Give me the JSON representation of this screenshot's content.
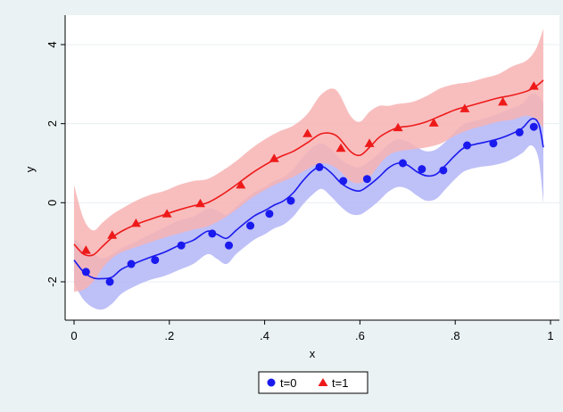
{
  "chart_data": {
    "type": "line",
    "title": "",
    "xlabel": "x",
    "ylabel": "y",
    "xlim": [
      -0.02,
      1.02
    ],
    "ylim": [
      -3.0,
      4.4
    ],
    "xticks": [
      0,
      0.2,
      0.4,
      0.6,
      0.8,
      1
    ],
    "xtick_labels": [
      "0",
      ".2",
      ".4",
      ".6",
      ".8",
      "1"
    ],
    "yticks": [
      -2,
      0,
      2,
      4
    ],
    "ytick_labels": [
      "-2",
      "0",
      "2",
      "4"
    ],
    "grid": "horizontal",
    "legend_position": "bottom",
    "series": [
      {
        "name": "t=0",
        "color": "#1a1aee",
        "band_color": "#b3b5f7",
        "marker": "circle",
        "points": {
          "x": [
            0.025,
            0.075,
            0.12,
            0.17,
            0.225,
            0.29,
            0.325,
            0.37,
            0.41,
            0.455,
            0.515,
            0.565,
            0.615,
            0.69,
            0.73,
            0.775,
            0.825,
            0.88,
            0.935,
            0.965
          ],
          "y": [
            -1.75,
            -2.0,
            -1.55,
            -1.45,
            -1.08,
            -0.78,
            -1.08,
            -0.58,
            -0.28,
            0.05,
            0.9,
            0.55,
            0.6,
            1.0,
            0.85,
            0.82,
            1.45,
            1.5,
            1.78,
            1.92
          ]
        },
        "fit": {
          "x": [
            0.0,
            0.02,
            0.04,
            0.06,
            0.08,
            0.1,
            0.13,
            0.16,
            0.19,
            0.22,
            0.25,
            0.28,
            0.3,
            0.32,
            0.34,
            0.36,
            0.38,
            0.4,
            0.42,
            0.44,
            0.46,
            0.48,
            0.5,
            0.52,
            0.54,
            0.56,
            0.58,
            0.6,
            0.62,
            0.64,
            0.66,
            0.68,
            0.7,
            0.72,
            0.74,
            0.76,
            0.78,
            0.8,
            0.82,
            0.85,
            0.88,
            0.91,
            0.94,
            0.96,
            0.975,
            0.985
          ],
          "y": [
            -1.45,
            -1.75,
            -1.9,
            -1.92,
            -1.88,
            -1.68,
            -1.52,
            -1.38,
            -1.25,
            -1.08,
            -0.95,
            -0.72,
            -0.8,
            -0.9,
            -0.7,
            -0.5,
            -0.32,
            -0.2,
            -0.06,
            0.05,
            0.25,
            0.55,
            0.8,
            0.92,
            0.75,
            0.5,
            0.35,
            0.3,
            0.45,
            0.65,
            0.88,
            1.0,
            0.95,
            0.78,
            0.68,
            0.72,
            0.95,
            1.2,
            1.4,
            1.5,
            1.58,
            1.7,
            1.88,
            2.12,
            2.0,
            1.4
          ]
        },
        "band": {
          "upper": [
            -0.9,
            -1.15,
            -1.3,
            -1.4,
            -1.3,
            -1.15,
            -0.98,
            -0.8,
            -0.62,
            -0.45,
            -0.35,
            -0.15,
            -0.2,
            -0.3,
            -0.1,
            0.1,
            0.28,
            0.4,
            0.55,
            0.65,
            0.85,
            1.15,
            1.4,
            1.5,
            1.35,
            1.1,
            0.95,
            0.9,
            1.05,
            1.25,
            1.48,
            1.6,
            1.55,
            1.4,
            1.3,
            1.35,
            1.55,
            1.8,
            2.0,
            2.1,
            2.2,
            2.35,
            2.5,
            2.75,
            2.7,
            2.5
          ],
          "lower": [
            -2.05,
            -2.45,
            -2.65,
            -2.7,
            -2.55,
            -2.3,
            -2.1,
            -1.95,
            -1.85,
            -1.7,
            -1.55,
            -1.3,
            -1.42,
            -1.55,
            -1.3,
            -1.1,
            -0.92,
            -0.8,
            -0.65,
            -0.55,
            -0.35,
            -0.05,
            0.2,
            0.35,
            0.15,
            -0.1,
            -0.28,
            -0.3,
            -0.15,
            0.05,
            0.28,
            0.4,
            0.35,
            0.18,
            0.05,
            0.1,
            0.35,
            0.6,
            0.8,
            0.9,
            0.95,
            1.05,
            1.25,
            1.45,
            1.1,
            0.0
          ]
        }
      },
      {
        "name": "t=1",
        "color": "#ee1a1a",
        "band_color": "#f7b3b3",
        "marker": "triangle",
        "points": {
          "x": [
            0.025,
            0.08,
            0.13,
            0.195,
            0.265,
            0.35,
            0.42,
            0.49,
            0.56,
            0.62,
            0.68,
            0.755,
            0.82,
            0.9,
            0.965
          ],
          "y": [
            -1.2,
            -0.82,
            -0.52,
            -0.28,
            -0.02,
            0.45,
            1.12,
            1.75,
            1.38,
            1.5,
            1.9,
            2.02,
            2.38,
            2.55,
            2.95
          ]
        },
        "fit": {
          "x": [
            0.0,
            0.02,
            0.04,
            0.06,
            0.08,
            0.1,
            0.13,
            0.16,
            0.19,
            0.22,
            0.25,
            0.28,
            0.31,
            0.34,
            0.37,
            0.4,
            0.43,
            0.46,
            0.49,
            0.52,
            0.55,
            0.58,
            0.6,
            0.62,
            0.64,
            0.66,
            0.68,
            0.71,
            0.74,
            0.77,
            0.8,
            0.83,
            0.86,
            0.89,
            0.92,
            0.95,
            0.97,
            0.985
          ],
          "y": [
            -1.05,
            -1.3,
            -1.32,
            -1.1,
            -0.88,
            -0.72,
            -0.55,
            -0.42,
            -0.3,
            -0.18,
            -0.08,
            0.0,
            0.2,
            0.45,
            0.72,
            0.95,
            1.15,
            1.3,
            1.52,
            1.75,
            1.7,
            1.3,
            1.2,
            1.4,
            1.65,
            1.8,
            1.9,
            1.95,
            2.05,
            2.2,
            2.35,
            2.45,
            2.55,
            2.65,
            2.72,
            2.82,
            2.95,
            3.1
          ]
        },
        "band": {
          "upper": [
            0.45,
            -0.4,
            -0.7,
            -0.5,
            -0.3,
            -0.15,
            0.05,
            0.2,
            0.3,
            0.45,
            0.55,
            0.6,
            0.8,
            1.05,
            1.35,
            1.6,
            1.8,
            1.95,
            2.25,
            2.75,
            2.85,
            2.2,
            2.05,
            2.3,
            2.45,
            2.45,
            2.5,
            2.55,
            2.7,
            2.9,
            3.0,
            3.05,
            3.15,
            3.25,
            3.45,
            3.6,
            3.9,
            4.4
          ],
          "lower": [
            -2.25,
            -2.2,
            -2.0,
            -1.65,
            -1.4,
            -1.25,
            -1.12,
            -1.0,
            -0.88,
            -0.78,
            -0.68,
            -0.6,
            -0.42,
            -0.18,
            0.1,
            0.32,
            0.5,
            0.65,
            0.85,
            1.0,
            0.88,
            0.55,
            0.5,
            0.65,
            0.95,
            1.2,
            1.3,
            1.35,
            1.4,
            1.5,
            1.7,
            1.85,
            1.95,
            2.05,
            2.1,
            2.2,
            2.1,
            1.9
          ]
        }
      }
    ]
  }
}
